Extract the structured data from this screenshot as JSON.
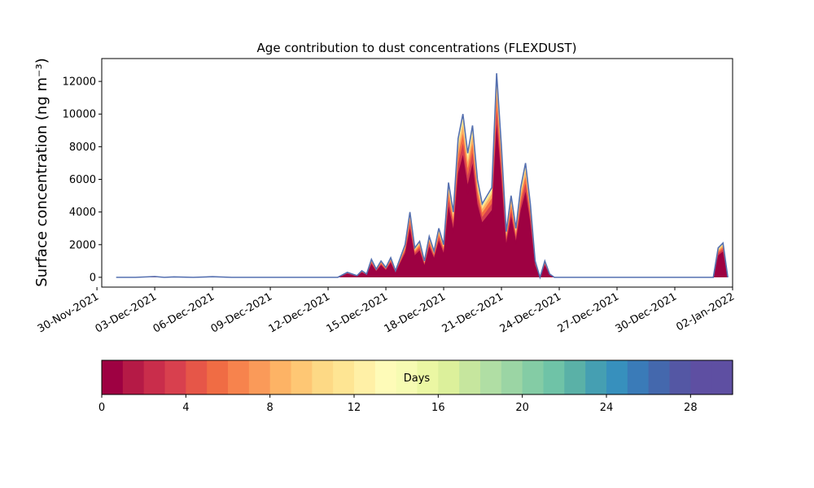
{
  "chart_data": {
    "type": "area",
    "title": "Age contribution to dust concentrations (FLEXDUST)",
    "ylabel": "Surface concentration (ng m⁻³)",
    "xlabel": "",
    "ylim": [
      -600,
      13400
    ],
    "yticks": [
      0,
      2000,
      4000,
      6000,
      8000,
      10000,
      12000
    ],
    "xlim": [
      "2021-11-30T06:00",
      "2022-01-02T00:00"
    ],
    "xticks": [
      "30-Nov-2021",
      "03-Dec-2021",
      "06-Dec-2021",
      "09-Dec-2021",
      "12-Dec-2021",
      "15-Dec-2021",
      "18-Dec-2021",
      "21-Dec-2021",
      "24-Dec-2021",
      "27-Dec-2021",
      "30-Dec-2021",
      "02-Jan-2022"
    ],
    "grid": false,
    "series_note_colors": [
      "#9e0142",
      "#d53e4f",
      "#f46d43",
      "#fdae61",
      "#fee08b",
      "#ffffbf",
      "#e6f598",
      "#abdda4",
      "#66c2a5",
      "#3288bd",
      "#5e4fa2"
    ],
    "total_line_color": "#5570b0",
    "x": [
      "2021-12-01T00:00",
      "2021-12-02T00:00",
      "2021-12-03T00:00",
      "2021-12-03T12:00",
      "2021-12-04T00:00",
      "2021-12-05T00:00",
      "2021-12-06T00:00",
      "2021-12-07T00:00",
      "2021-12-08T00:00",
      "2021-12-09T00:00",
      "2021-12-10T00:00",
      "2021-12-11T00:00",
      "2021-12-12T00:00",
      "2021-12-12T12:00",
      "2021-12-13T00:00",
      "2021-12-13T12:00",
      "2021-12-13T18:00",
      "2021-12-14T00:00",
      "2021-12-14T06:00",
      "2021-12-14T12:00",
      "2021-12-14T18:00",
      "2021-12-15T00:00",
      "2021-12-15T06:00",
      "2021-12-15T12:00",
      "2021-12-15T18:00",
      "2021-12-16T00:00",
      "2021-12-16T06:00",
      "2021-12-16T12:00",
      "2021-12-16T18:00",
      "2021-12-17T00:00",
      "2021-12-17T06:00",
      "2021-12-17T12:00",
      "2021-12-17T18:00",
      "2021-12-18T00:00",
      "2021-12-18T06:00",
      "2021-12-18T12:00",
      "2021-12-18T18:00",
      "2021-12-19T00:00",
      "2021-12-19T06:00",
      "2021-12-19T12:00",
      "2021-12-19T18:00",
      "2021-12-20T00:00",
      "2021-12-20T06:00",
      "2021-12-20T12:00",
      "2021-12-20T18:00",
      "2021-12-21T00:00",
      "2021-12-21T06:00",
      "2021-12-21T12:00",
      "2021-12-21T18:00",
      "2021-12-22T00:00",
      "2021-12-22T06:00",
      "2021-12-22T12:00",
      "2021-12-22T18:00",
      "2021-12-23T00:00",
      "2021-12-23T06:00",
      "2021-12-23T12:00",
      "2021-12-23T18:00",
      "2021-12-24T00:00",
      "2021-12-24T06:00",
      "2021-12-24T12:00",
      "2021-12-24T18:00",
      "2021-12-25T00:00",
      "2021-12-26T00:00",
      "2021-12-27T00:00",
      "2021-12-28T00:00",
      "2021-12-29T00:00",
      "2021-12-30T00:00",
      "2021-12-31T00:00",
      "2021-12-31T12:00",
      "2021-12-31T18:00",
      "2022-01-01T00:00",
      "2022-01-01T06:00",
      "2022-01-01T12:00",
      "2022-01-01T18:00"
    ],
    "values": [
      0,
      0,
      50,
      0,
      30,
      0,
      40,
      0,
      0,
      0,
      0,
      0,
      0,
      0,
      300,
      100,
      400,
      200,
      1100,
      500,
      1000,
      600,
      1200,
      400,
      1200,
      2000,
      4000,
      1800,
      2200,
      1000,
      2500,
      1600,
      3000,
      2000,
      5800,
      4000,
      8500,
      10000,
      7600,
      9300,
      6000,
      4500,
      5000,
      5500,
      12500,
      8000,
      2800,
      5000,
      3000,
      5500,
      7000,
      4500,
      1000,
      0,
      1000,
      200,
      0,
      0,
      0,
      0,
      0,
      0,
      0,
      0,
      0,
      0,
      0,
      0,
      0,
      0,
      0,
      1800,
      2100,
      0
    ],
    "colorbar": {
      "label": "Days",
      "range": [
        0,
        30
      ],
      "ticks": [
        "0",
        "4",
        "8",
        "12",
        "16",
        "20",
        "24",
        "28"
      ],
      "bands": [
        "#9e0142",
        "#b51a46",
        "#c92d4b",
        "#d8404e",
        "#e65648",
        "#f06c44",
        "#f7834d",
        "#fa9a59",
        "#fdb365",
        "#fec774",
        "#fdd985",
        "#fee593",
        "#fff0a6",
        "#fefbb8",
        "#f6fbb2",
        "#ebf7a3",
        "#dcf09b",
        "#c6e69e",
        "#b0dea4",
        "#9bd5a4",
        "#84cca5",
        "#6fc3a7",
        "#5ab1a7",
        "#459fb2",
        "#3790bd",
        "#3a7bb8",
        "#4468ad",
        "#5457a4",
        "#5e4fa2",
        "#5e4fa2"
      ]
    }
  }
}
